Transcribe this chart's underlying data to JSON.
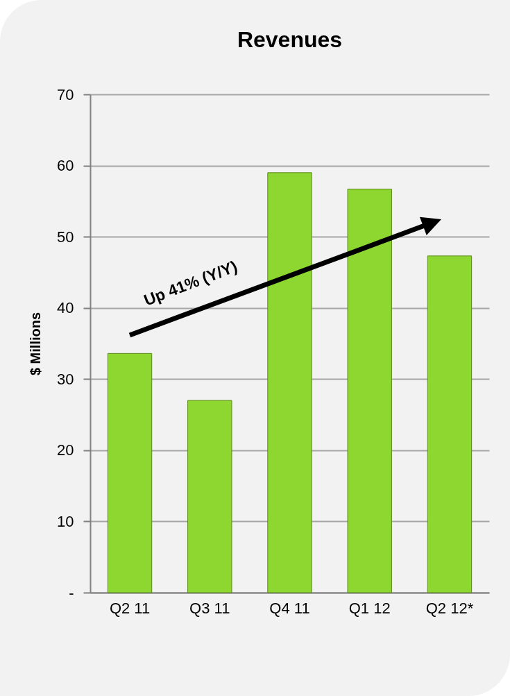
{
  "chart_data": {
    "type": "bar",
    "title": "Revenues",
    "ylabel": "$ Millions",
    "categories": [
      "Q2 11",
      "Q3 11",
      "Q4 11",
      "Q1 12",
      "Q2 12*"
    ],
    "values": [
      33.6,
      27,
      59,
      56.7,
      47.3
    ],
    "color": "#8ed630",
    "ylim": [
      0,
      70
    ],
    "yticks": [
      {
        "value": 0,
        "label": "-"
      },
      10,
      20,
      30,
      40,
      50,
      60,
      70
    ],
    "grid": "y",
    "annotations": [
      "Up 41% (Y/Y)"
    ]
  }
}
